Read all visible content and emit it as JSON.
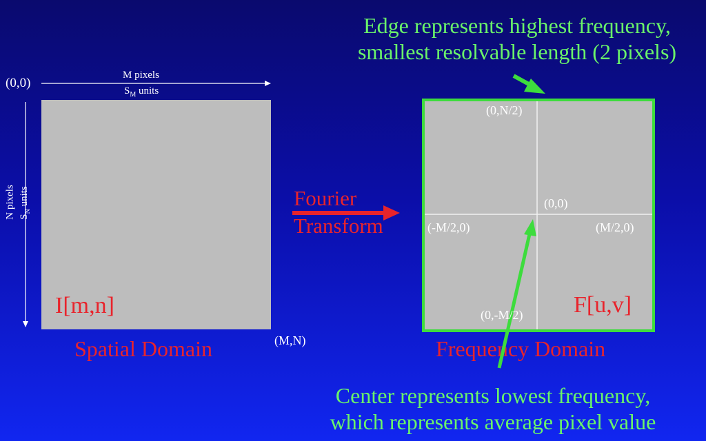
{
  "edge_note": {
    "line1": "Edge represents highest frequency,",
    "line2": "smallest resolvable length (2 pixels)"
  },
  "center_note": {
    "line1": "Center represents lowest frequency,",
    "line2": "which represents average pixel value"
  },
  "spatial": {
    "origin": "(0,0)",
    "width_pixels": "M pixels",
    "width_units_prefix": "S",
    "width_units_sub": "M",
    "width_units_suffix": " units",
    "height_pixels": "N pixels",
    "height_units_prefix": "S",
    "height_units_sub": "N",
    "height_units_suffix": " units",
    "image_label": "I[m,n]",
    "corner": "(M,N)",
    "domain_label": "Spatial Domain"
  },
  "transform": {
    "line1": "Fourier",
    "line2": "Transform"
  },
  "frequency": {
    "top": "(0,N/2)",
    "center": "(0,0)",
    "left": "(-M/2,0)",
    "right": "(M/2,0)",
    "bottom": "(0,-M/2)",
    "image_label": "F[u,v]",
    "domain_label": "Frequency Domain"
  },
  "colors": {
    "background_top": "#0a0a6e",
    "background_bottom": "#1126f0",
    "green": "#6af46a",
    "red": "#e8242c",
    "gray_box": "#bdbdbd"
  }
}
